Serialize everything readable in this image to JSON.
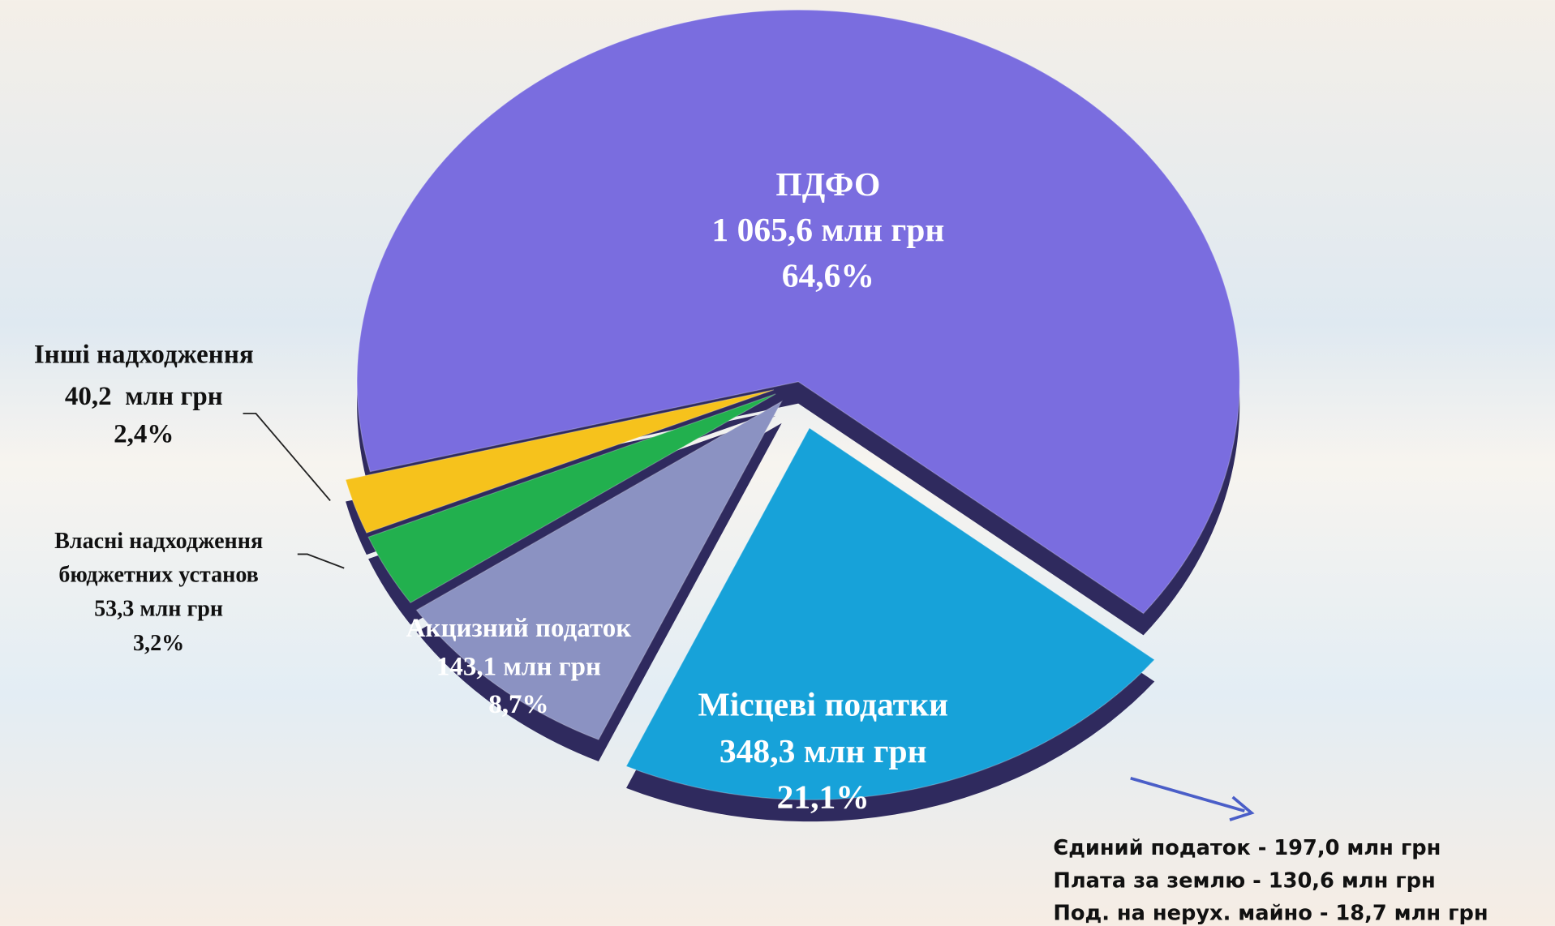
{
  "chart_data": {
    "type": "pie",
    "categories": [
      "ПДФО",
      "Місцеві податки",
      "Акцизний податок",
      "Власні надходження\nбюджетних установ",
      "Інші надходження"
    ],
    "values": [
      64.6,
      21.1,
      8.7,
      3.2,
      2.4
    ],
    "value_labels": [
      "64,6%",
      "21,1%",
      "8,7%",
      "3,2%",
      "2,4%"
    ],
    "amounts": [
      1065.6,
      348.3,
      143.1,
      53.3,
      40.2
    ],
    "amount_labels": [
      "1 065,6 млн грн",
      "348,3 млн грн",
      "143,1 млн грн",
      "53,3 млн грн",
      "40,2  млн грн"
    ],
    "colors": [
      "#7a6ddf",
      "#17a2d9",
      "#8b92c2",
      "#22b04e",
      "#f6c21c"
    ],
    "annotations": [
      "Єдиний податок - 197,0 млн грн",
      "Плата за землю - 130,6 млн грн",
      "Под. на нерух. майно - 18,7 млн грн"
    ]
  }
}
